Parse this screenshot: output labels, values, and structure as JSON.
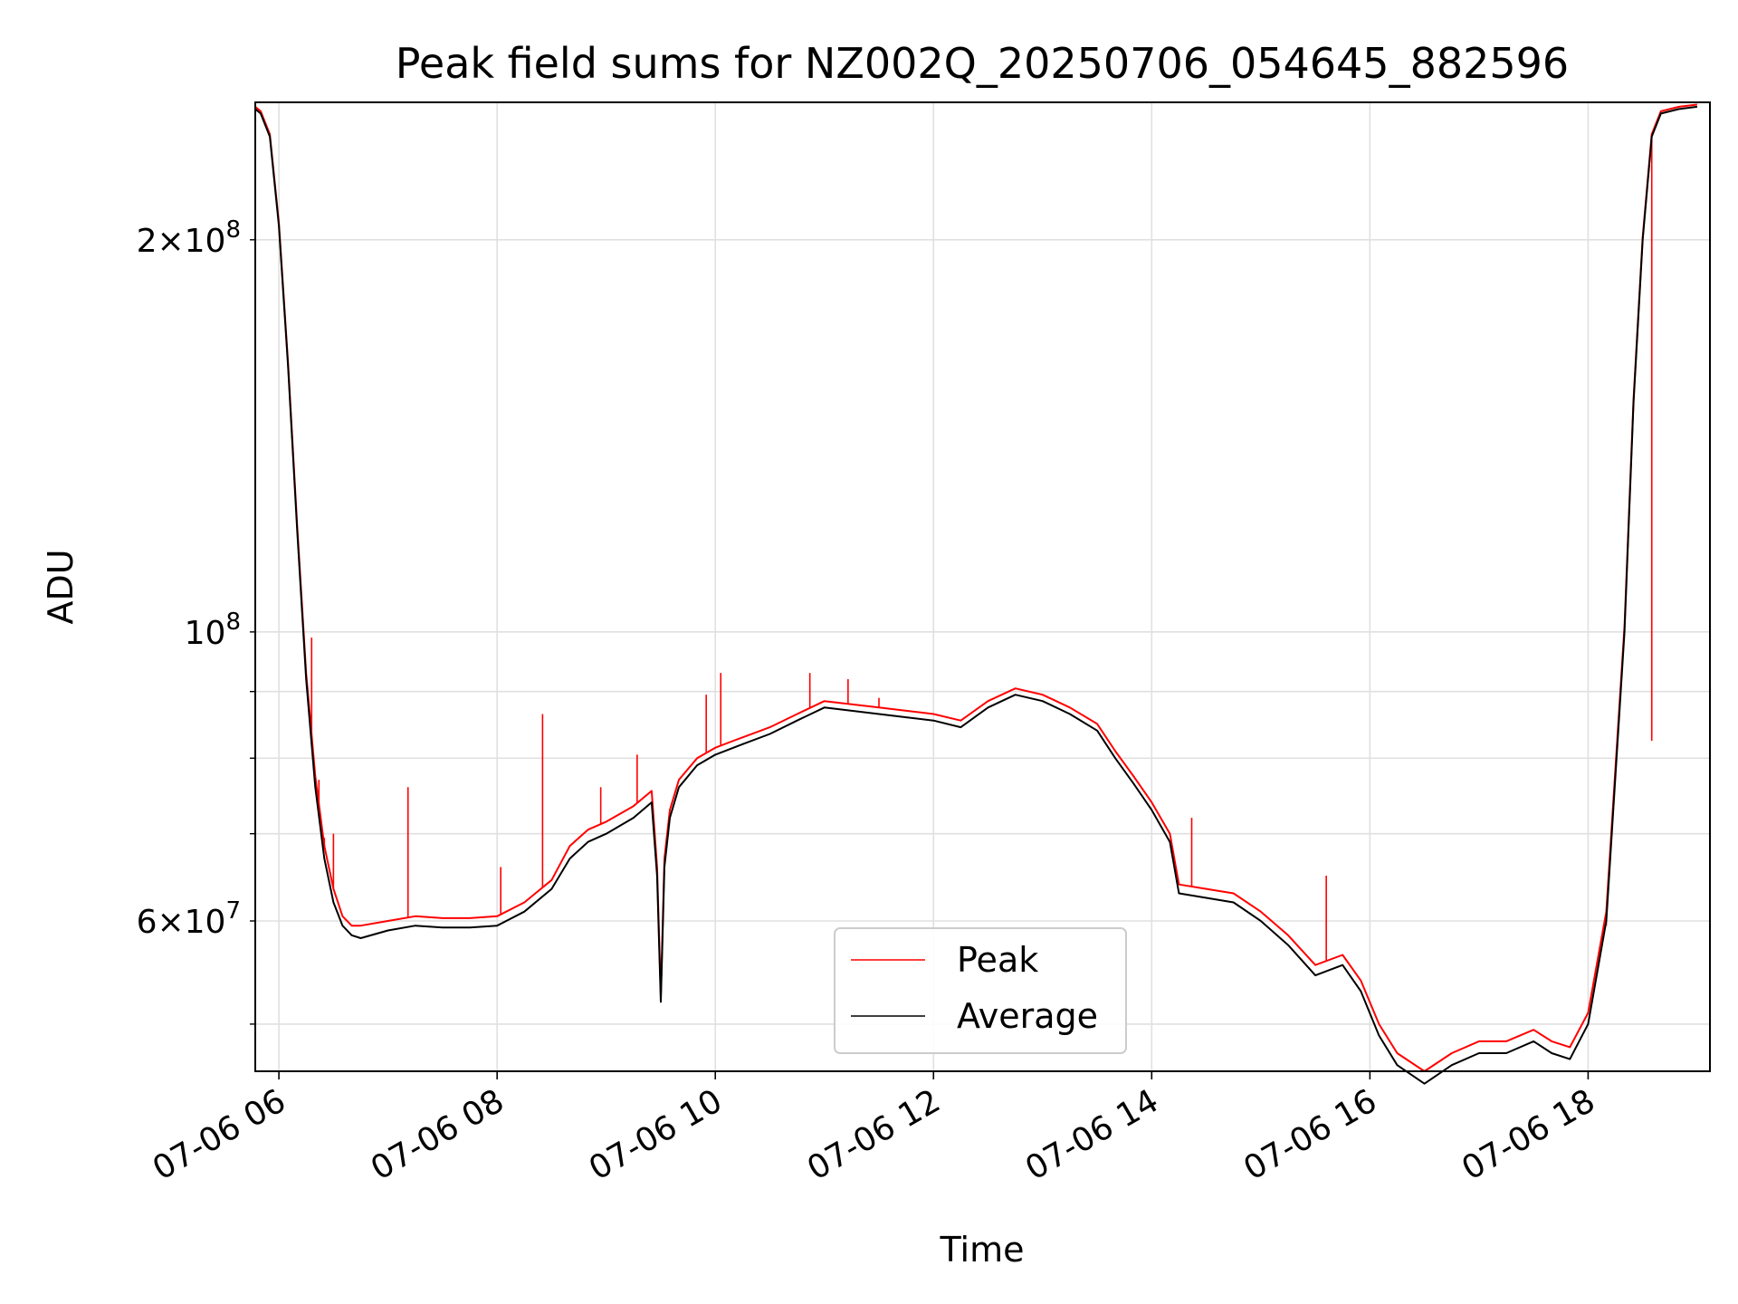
{
  "chart_data": {
    "type": "line",
    "title": "Peak field sums for NZ002Q_20250706_054645_882596",
    "xlabel": "Time",
    "ylabel": "ADU",
    "yscale": "log",
    "grid": true,
    "legend_position": "lower center",
    "x_tick_labels": [
      "07-06 06",
      "07-06 08",
      "07-06 10",
      "07-06 12",
      "07-06 14",
      "07-06 16",
      "07-06 18"
    ],
    "y_tick_labels": [
      {
        "mantissa": "6",
        "exp": "7"
      },
      {
        "mantissa": "",
        "exp": "8"
      },
      {
        "mantissa": "2",
        "exp": "8"
      }
    ],
    "colors": {
      "peak": "#ff0000",
      "average": "#000000",
      "grid": "#e0e0e0"
    },
    "x": [
      "07-06 05:47",
      "07-06 05:50",
      "07-06 05:55",
      "07-06 06:00",
      "07-06 06:05",
      "07-06 06:10",
      "07-06 06:15",
      "07-06 06:20",
      "07-06 06:25",
      "07-06 06:30",
      "07-06 06:35",
      "07-06 06:40",
      "07-06 06:45",
      "07-06 07:00",
      "07-06 07:15",
      "07-06 07:30",
      "07-06 07:45",
      "07-06 08:00",
      "07-06 08:15",
      "07-06 08:30",
      "07-06 08:40",
      "07-06 08:50",
      "07-06 09:00",
      "07-06 09:15",
      "07-06 09:25",
      "07-06 09:28",
      "07-06 09:30",
      "07-06 09:32",
      "07-06 09:35",
      "07-06 09:40",
      "07-06 09:50",
      "07-06 10:00",
      "07-06 10:10",
      "07-06 10:15",
      "07-06 10:30",
      "07-06 10:45",
      "07-06 11:00",
      "07-06 11:15",
      "07-06 11:30",
      "07-06 11:45",
      "07-06 12:00",
      "07-06 12:15",
      "07-06 12:30",
      "07-06 12:45",
      "07-06 13:00",
      "07-06 13:15",
      "07-06 13:30",
      "07-06 13:40",
      "07-06 13:50",
      "07-06 14:00",
      "07-06 14:10",
      "07-06 14:15",
      "07-06 14:30",
      "07-06 14:45",
      "07-06 15:00",
      "07-06 15:15",
      "07-06 15:30",
      "07-06 15:45",
      "07-06 15:55",
      "07-06 16:05",
      "07-06 16:15",
      "07-06 16:30",
      "07-06 16:45",
      "07-06 17:00",
      "07-06 17:15",
      "07-06 17:30",
      "07-06 17:40",
      "07-06 17:50",
      "07-06 18:00",
      "07-06 18:10",
      "07-06 18:20",
      "07-06 18:25",
      "07-06 18:30",
      "07-06 18:35",
      "07-06 18:40",
      "07-06 18:50",
      "07-06 19:00"
    ],
    "series": [
      {
        "name": "Average",
        "values": [
          252000000,
          250000000,
          240000000,
          205000000,
          160000000,
          120000000,
          92000000,
          76000000,
          67000000,
          62000000,
          59500000,
          58500000,
          58200000,
          59000000,
          59500000,
          59300000,
          59300000,
          59500000,
          61000000,
          63500000,
          67000000,
          69000000,
          70000000,
          72000000,
          74000000,
          65000000,
          52000000,
          66000000,
          72000000,
          76000000,
          79000000,
          80500000,
          81500000,
          82000000,
          83500000,
          85500000,
          87500000,
          87000000,
          86500000,
          86000000,
          85500000,
          84500000,
          87500000,
          89500000,
          88500000,
          86500000,
          84000000,
          80000000,
          76500000,
          73000000,
          69000000,
          63000000,
          62500000,
          62000000,
          60000000,
          57500000,
          54500000,
          55500000,
          53000000,
          49000000,
          46500000,
          45000000,
          46500000,
          47500000,
          47500000,
          48500000,
          47500000,
          47000000,
          50000000,
          60000000,
          100000000,
          150000000,
          200000000,
          240000000,
          250000000,
          252000000,
          253000000
        ]
      },
      {
        "name": "Peak",
        "values": [
          253000000,
          251000000,
          241000000,
          206000000,
          161000000,
          121000000,
          93000000,
          77500000,
          68500000,
          63500000,
          60500000,
          59500000,
          59500000,
          60000000,
          60500000,
          60300000,
          60300000,
          60500000,
          62000000,
          64500000,
          68500000,
          70500000,
          71500000,
          73500000,
          75500000,
          66000000,
          52500000,
          67000000,
          73000000,
          77000000,
          80000000,
          81500000,
          82500000,
          83000000,
          84500000,
          86500000,
          88500000,
          88000000,
          87500000,
          87000000,
          86500000,
          85500000,
          88500000,
          90500000,
          89500000,
          87500000,
          85000000,
          81000000,
          77500000,
          74000000,
          70000000,
          64000000,
          63500000,
          63000000,
          61000000,
          58500000,
          55500000,
          56500000,
          54000000,
          50000000,
          47500000,
          46000000,
          47500000,
          48500000,
          48500000,
          49500000,
          48500000,
          48000000,
          51000000,
          61000000,
          101000000,
          151000000,
          201000000,
          241000000,
          251000000,
          253000000,
          254000000
        ],
        "spikes": [
          {
            "x": "07-06 06:18",
            "value": 99000000
          },
          {
            "x": "07-06 06:22",
            "value": 77000000
          },
          {
            "x": "07-06 06:25",
            "value": 69500000
          },
          {
            "x": "07-06 06:30",
            "value": 70000000
          },
          {
            "x": "07-06 07:11",
            "value": 76000000
          },
          {
            "x": "07-06 08:02",
            "value": 66000000
          },
          {
            "x": "07-06 08:25",
            "value": 86500000
          },
          {
            "x": "07-06 08:57",
            "value": 76000000
          },
          {
            "x": "07-06 09:17",
            "value": 80500000
          },
          {
            "x": "07-06 09:55",
            "value": 89500000
          },
          {
            "x": "07-06 10:03",
            "value": 93000000
          },
          {
            "x": "07-06 10:52",
            "value": 93000000
          },
          {
            "x": "07-06 11:13",
            "value": 92000000
          },
          {
            "x": "07-06 11:30",
            "value": 89000000
          },
          {
            "x": "07-06 14:22",
            "value": 72000000
          },
          {
            "x": "07-06 15:36",
            "value": 65000000
          },
          {
            "x": "07-06 18:10",
            "value": 59500000
          },
          {
            "x": "07-06 18:35",
            "value": 82500000
          }
        ]
      }
    ],
    "xlim": [
      "07-06 05:47",
      "07-06 19:07"
    ],
    "ylim": [
      46000000,
      255000000
    ]
  }
}
